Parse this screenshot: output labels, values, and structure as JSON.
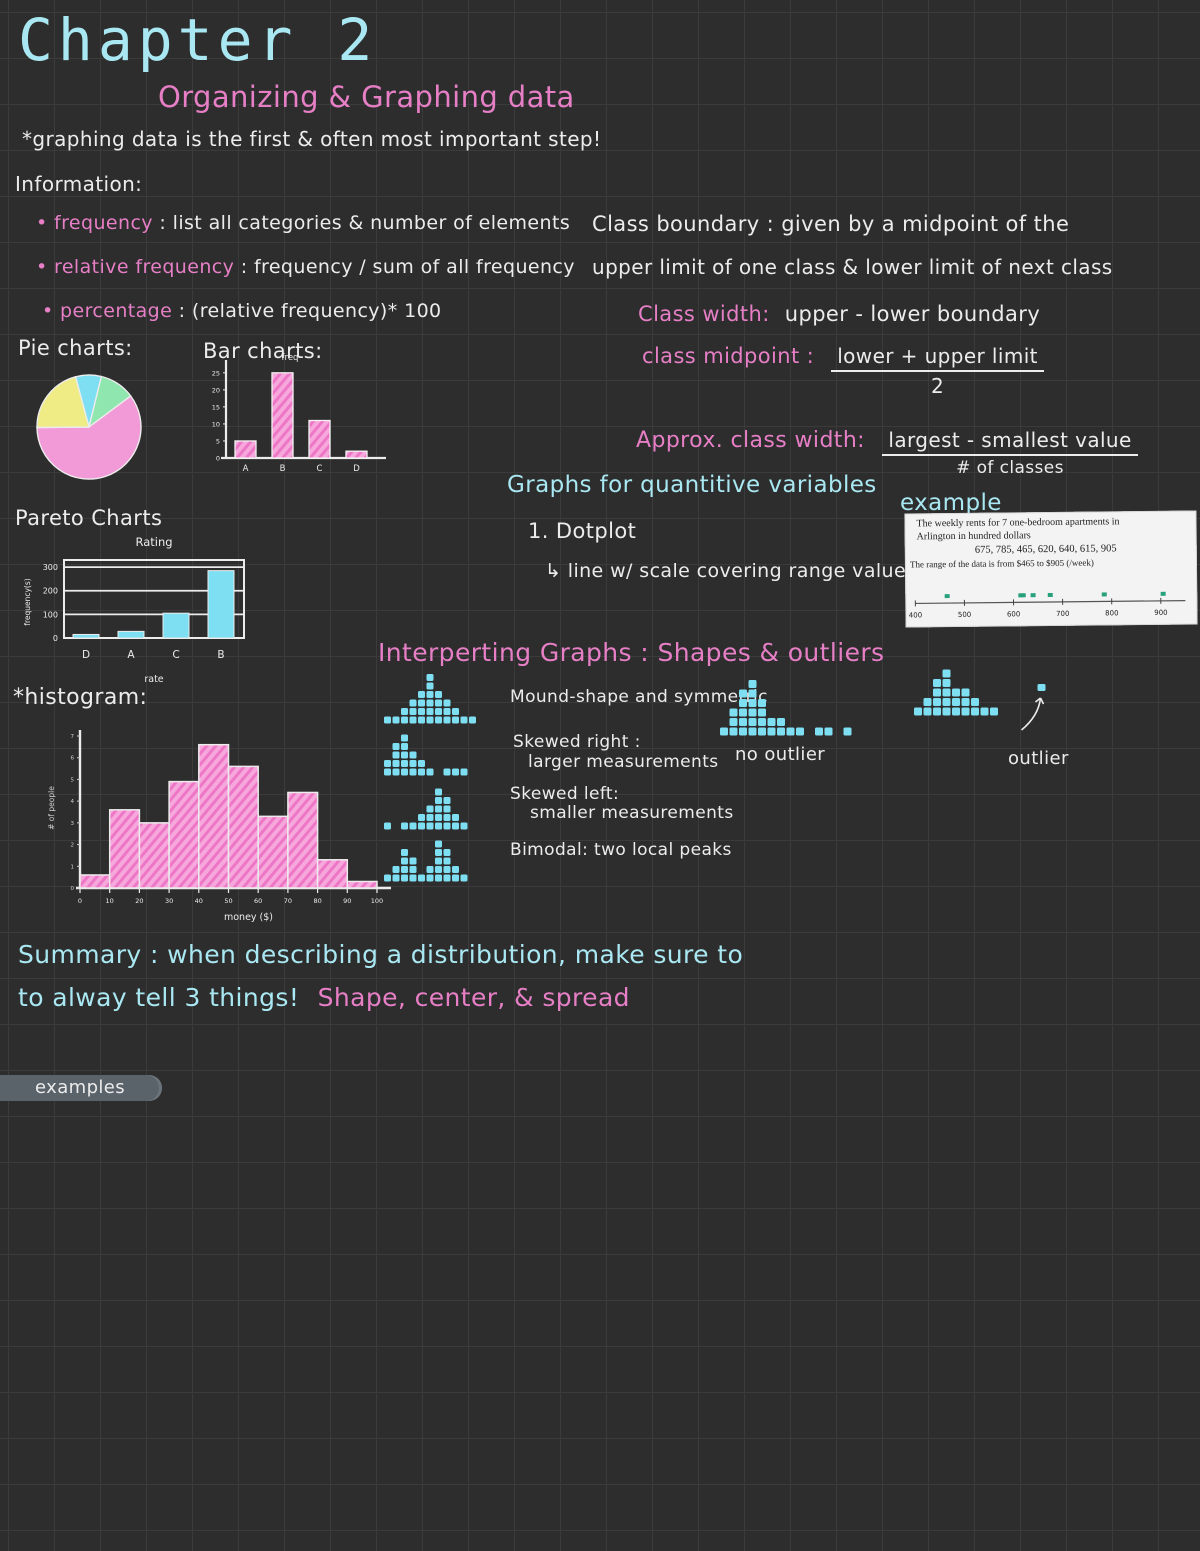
{
  "colors": {
    "cyan_text": "#a9e8f2",
    "pink_text": "#e77fc6",
    "white_text": "#ececec",
    "background": "#2d2d2d",
    "grid": "#3b3b3b",
    "pink_fill": "#f6a8dc",
    "pink_stripe": "#ee76c6",
    "cyan_fill": "#7edff2",
    "yellow_fill": "#efec85",
    "green_fill": "#8fe6ae",
    "example_dot": "#27a07c",
    "tab_bg": "#5a626a"
  },
  "header": {
    "title": "Chapter 2",
    "subtitle": "Organizing & Graphing data",
    "intro": "*graphing data is the first & often most important step!",
    "info_label": "Information:"
  },
  "info_bullets": [
    {
      "term": "• frequency",
      "def": ": list all categories & number of elements"
    },
    {
      "term": "• relative frequency",
      "def": ": frequency / sum of all frequency"
    },
    {
      "term": "• percentage",
      "def": ": (relative frequency)* 100"
    }
  ],
  "class_notes": {
    "boundary1": "Class boundary : given by a midpoint of the",
    "boundary2": "upper limit of one class & lower limit of next class",
    "width_term": "Class width:",
    "width_def": "upper - lower boundary",
    "midpoint_term": "class midpoint :",
    "midpoint_num": "lower + upper limit",
    "midpoint_den": "2",
    "approx_term": "Approx. class width:",
    "approx_num": "largest - smallest value",
    "approx_den": "# of classes"
  },
  "pie_chart": {
    "label": "Pie charts:",
    "start_deg": -15,
    "slices": [
      {
        "name": "cyan-slice",
        "value": 8,
        "color": "#7edff2"
      },
      {
        "name": "green-slice",
        "value": 11,
        "color": "#8fe6ae"
      },
      {
        "name": "pink-slice",
        "value": 60,
        "color": "#f29ad8"
      },
      {
        "name": "yellow-slice",
        "value": 21,
        "color": "#efec85"
      }
    ]
  },
  "bar_chart": {
    "label": "Bar charts:",
    "title": "freq",
    "categories": [
      "A",
      "B",
      "C",
      "D"
    ],
    "values": [
      5,
      25,
      11,
      2
    ],
    "yticks": [
      0,
      5,
      10,
      15,
      20,
      25
    ],
    "ymax": 27
  },
  "pareto_chart": {
    "label": "Pareto Charts",
    "title": "Rating",
    "ylabel": "frequency(s)",
    "xlabel": "rate",
    "categories": [
      "D",
      "A",
      "C",
      "B"
    ],
    "values": [
      15,
      28,
      105,
      285
    ],
    "yticks": [
      0,
      100,
      200,
      300
    ],
    "ymax": 330
  },
  "quantitative": {
    "heading": "Graphs for quantitive variables",
    "item": "1. Dotplot",
    "note": "↳ line w/ scale covering range values"
  },
  "example": {
    "heading": "example",
    "line1": "The weekly rents for 7 one-bedroom apartments in",
    "line2": "Arlington in hundred dollars",
    "values": "675, 785, 465, 620, 640, 615, 905",
    "note": "The range of the data is from $465 to $905 (/week)",
    "dot_values": [
      465,
      615,
      620,
      640,
      675,
      785,
      905
    ],
    "axis_ticks": [
      400,
      500,
      600,
      700,
      800,
      900
    ],
    "axis_min": 400,
    "axis_max": 950,
    "dot_color": "#27a07c"
  },
  "shapes": {
    "heading": "Interperting Graphs : Shapes & outliers",
    "items": [
      {
        "line1": "Mound-shape and symmetric",
        "line2": "",
        "stacks": [
          1,
          1,
          2,
          3,
          4,
          6,
          4,
          3,
          2,
          1,
          1
        ]
      },
      {
        "line1": "Skewed right :",
        "line2": "larger measurements",
        "stacks": [
          2,
          4,
          5,
          3,
          2,
          1,
          0,
          1,
          1,
          1
        ]
      },
      {
        "line1": "Skewed left:",
        "line2": "smaller measurements",
        "stacks": [
          1,
          0,
          1,
          1,
          2,
          3,
          5,
          4,
          2,
          1
        ]
      },
      {
        "line1": "Bimodal: two local peaks",
        "line2": "",
        "stacks": [
          1,
          2,
          4,
          3,
          1,
          2,
          5,
          4,
          2,
          1
        ]
      }
    ],
    "no_outlier": {
      "label": "no outlier",
      "stacks": [
        1,
        3,
        5,
        6,
        4,
        2,
        2,
        1,
        1,
        0,
        1,
        1,
        0,
        1
      ]
    },
    "outlier": {
      "label": "outlier",
      "stacks": [
        1,
        2,
        4,
        5,
        3,
        3,
        2,
        1,
        1
      ],
      "gap_cols": 4
    }
  },
  "histogram": {
    "label": "*histogram:",
    "ylabel": "# of people",
    "xlabel": "money ($)",
    "values": [
      0.6,
      3.6,
      3.0,
      4.9,
      6.6,
      5.6,
      3.3,
      4.4,
      1.3,
      0.3
    ],
    "yticks": [
      0,
      1,
      2,
      3,
      4,
      5,
      6,
      7
    ],
    "ymax": 7,
    "xticks": [
      0,
      10,
      20,
      30,
      40,
      50,
      60,
      70,
      80,
      90,
      100
    ]
  },
  "summary": {
    "line1": "Summary : when describing a distribution, make sure to",
    "line2_a": "to alway tell 3 things!",
    "line2_b": "Shape, center, & spread"
  },
  "examples_tab": {
    "label": "examples"
  }
}
